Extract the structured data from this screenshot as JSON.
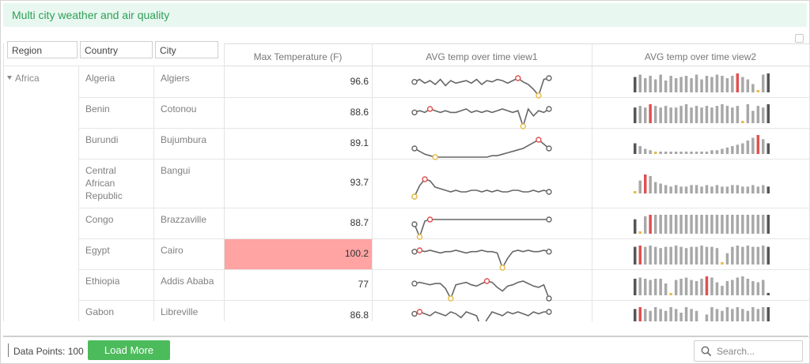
{
  "title": "Multi city weather and air quality",
  "filters": {
    "region": "Region",
    "country": "Country",
    "city": "City"
  },
  "headers": {
    "max_temp": "Max Temperature (F)",
    "view1": "AVG temp over time view1",
    "view2": "AVG temp over time view2"
  },
  "region": "Africa",
  "rows": [
    {
      "country": [
        "Algeria"
      ],
      "city": "Algiers",
      "max_temp": "96.6",
      "highlight": false,
      "trend": [
        20,
        22,
        19,
        21,
        18,
        22,
        17,
        21,
        19,
        20,
        21,
        19,
        22,
        18,
        21,
        20,
        22,
        21,
        19,
        21,
        23,
        20,
        18,
        14,
        9,
        22,
        23
      ]
    },
    {
      "country": [
        "Benin"
      ],
      "city": "Cotonou",
      "max_temp": "88.6",
      "highlight": false,
      "trend": [
        20,
        21,
        20,
        22,
        21,
        20,
        21,
        20,
        20,
        21,
        22,
        20,
        21,
        20,
        21,
        20,
        21,
        22,
        21,
        20,
        21,
        12,
        22,
        18,
        21,
        20,
        22
      ]
    },
    {
      "country": [
        "Burundi"
      ],
      "city": "Bujumbura",
      "max_temp": "89.1",
      "highlight": false,
      "trend": [
        20,
        18,
        16,
        15,
        14,
        14,
        14,
        14,
        14,
        14,
        14,
        14,
        14,
        14,
        14,
        15,
        15,
        16,
        17,
        18,
        19,
        20,
        22,
        24,
        26,
        23,
        20
      ]
    },
    {
      "country": [
        "Central",
        "African",
        "Republic"
      ],
      "city": "Bangui",
      "max_temp": "93.7",
      "highlight": false,
      "trend": [
        5,
        12,
        16,
        15,
        11,
        10,
        9,
        8,
        9,
        8,
        8,
        9,
        9,
        8,
        9,
        8,
        9,
        8,
        8,
        9,
        9,
        8,
        8,
        9,
        8,
        9,
        8
      ]
    },
    {
      "country": [
        "Congo"
      ],
      "city": "Brazzaville",
      "max_temp": "88.7",
      "highlight": false,
      "trend": [
        12,
        4,
        14,
        15,
        15,
        15,
        15,
        15,
        15,
        15,
        15,
        15,
        15,
        15,
        15,
        15,
        15,
        15,
        15,
        15,
        15,
        15,
        15,
        15,
        15,
        15,
        15
      ]
    },
    {
      "country": [
        "Egypt"
      ],
      "city": "Cairo",
      "max_temp": "100.2",
      "highlight": true,
      "trend": [
        20,
        21,
        20,
        21,
        20,
        19,
        20,
        20,
        21,
        20,
        19,
        20,
        20,
        21,
        20,
        20,
        19,
        8,
        15,
        20,
        21,
        20,
        21,
        20,
        20,
        21,
        20
      ]
    },
    {
      "country": [
        "Ethiopia"
      ],
      "city": "Addis Ababa",
      "max_temp": "77",
      "highlight": false,
      "trend": [
        20,
        21,
        20,
        19,
        20,
        20,
        16,
        8,
        19,
        20,
        21,
        19,
        18,
        20,
        22,
        21,
        17,
        14,
        18,
        19,
        21,
        22,
        20,
        18,
        17,
        19,
        8
      ]
    },
    {
      "country": [
        "Gabon"
      ],
      "city": "Libreville",
      "max_temp": "86.8",
      "highlight": false,
      "trend": [
        20,
        21,
        20,
        19,
        21,
        20,
        19,
        21,
        20,
        18,
        21,
        20,
        19,
        12,
        17,
        21,
        20,
        19,
        21,
        20,
        21,
        20,
        19,
        21,
        20,
        21,
        21
      ]
    }
  ],
  "footer": {
    "data_points": "Data Points: 100",
    "load_more": "Load More",
    "search_placeholder": "Search..."
  },
  "colors": {
    "accent": "#4cbb5c",
    "high": "#e05050",
    "low": "#e8bb4a",
    "line": "#666666",
    "bar": "#a8a8a8",
    "bar_edge": "#555555",
    "highlight_cell": "#ffa3a3"
  }
}
